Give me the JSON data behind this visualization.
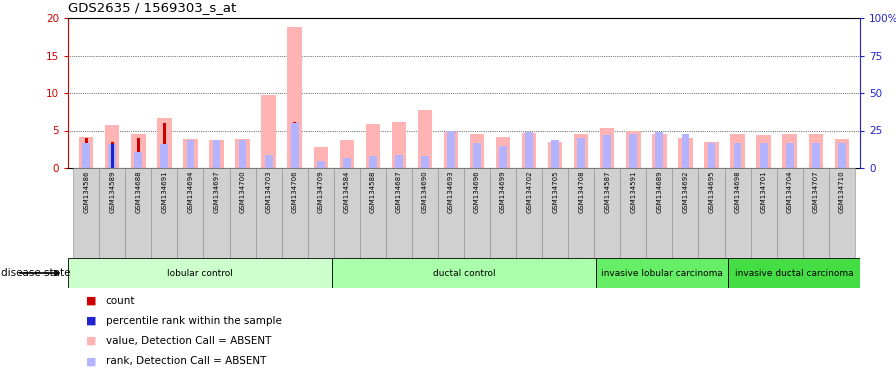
{
  "title": "GDS2635 / 1569303_s_at",
  "samples": [
    "GSM134586",
    "GSM134589",
    "GSM134688",
    "GSM134691",
    "GSM134694",
    "GSM134697",
    "GSM134700",
    "GSM134703",
    "GSM134706",
    "GSM134709",
    "GSM134584",
    "GSM134588",
    "GSM134687",
    "GSM134690",
    "GSM134693",
    "GSM134696",
    "GSM134699",
    "GSM134702",
    "GSM134705",
    "GSM134708",
    "GSM134587",
    "GSM134591",
    "GSM134689",
    "GSM134692",
    "GSM134695",
    "GSM134698",
    "GSM134701",
    "GSM134704",
    "GSM134707",
    "GSM134710"
  ],
  "value_absent": [
    4.1,
    5.7,
    4.5,
    6.7,
    3.9,
    3.8,
    3.85,
    9.8,
    18.8,
    2.75,
    3.7,
    5.9,
    6.2,
    7.8,
    4.8,
    4.5,
    4.2,
    4.7,
    3.5,
    4.6,
    5.3,
    5.0,
    4.5,
    4.0,
    3.5,
    4.5,
    4.4,
    4.5,
    4.5,
    3.9
  ],
  "rank_absent": [
    17,
    16,
    11,
    16,
    19,
    19,
    19,
    9,
    30,
    5,
    7,
    8,
    9,
    8,
    25,
    17,
    15,
    24,
    19,
    20,
    22,
    23,
    24,
    23,
    17,
    17,
    17,
    17,
    17,
    17
  ],
  "count_vals": [
    4.0,
    null,
    4.0,
    6.0,
    null,
    null,
    null,
    null,
    6.2,
    null,
    null,
    null,
    null,
    null,
    null,
    null,
    null,
    null,
    null,
    null,
    null,
    null,
    null,
    null,
    null,
    null,
    null,
    null,
    null,
    null
  ],
  "count_red": [
    4.0,
    3.5,
    4.0,
    6.0,
    null,
    null,
    null,
    null,
    6.2,
    null,
    null,
    null,
    null,
    null,
    null,
    null,
    null,
    null,
    null,
    null,
    null,
    null,
    null,
    null,
    null,
    null,
    null,
    null,
    null,
    null
  ],
  "percentile_blue": [
    null,
    16,
    null,
    null,
    null,
    null,
    null,
    null,
    null,
    null,
    null,
    null,
    null,
    null,
    null,
    null,
    null,
    null,
    null,
    null,
    null,
    null,
    null,
    null,
    null,
    null,
    null,
    null,
    null,
    null
  ],
  "groups": [
    {
      "label": "lobular control",
      "start": 0,
      "end": 10,
      "color": "#ccffcc"
    },
    {
      "label": "ductal control",
      "start": 10,
      "end": 20,
      "color": "#aaffaa"
    },
    {
      "label": "invasive lobular carcinoma",
      "start": 20,
      "end": 25,
      "color": "#66ee66"
    },
    {
      "label": "invasive ductal carcinoma",
      "start": 25,
      "end": 30,
      "color": "#44dd44"
    }
  ],
  "ylim_left": [
    0,
    20
  ],
  "ylim_right": [
    0,
    100
  ],
  "yticks_left": [
    0,
    5,
    10,
    15,
    20
  ],
  "yticks_right": [
    0,
    25,
    50,
    75,
    100
  ],
  "color_value_absent": "#ffb3b3",
  "color_rank_absent": "#b3b3ff",
  "color_count": "#cc0000",
  "color_percentile": "#2222cc",
  "axis_color_left": "#cc0000",
  "axis_color_right": "#2222cc",
  "plot_bg": "#ffffff",
  "tick_box_color": "#cccccc"
}
